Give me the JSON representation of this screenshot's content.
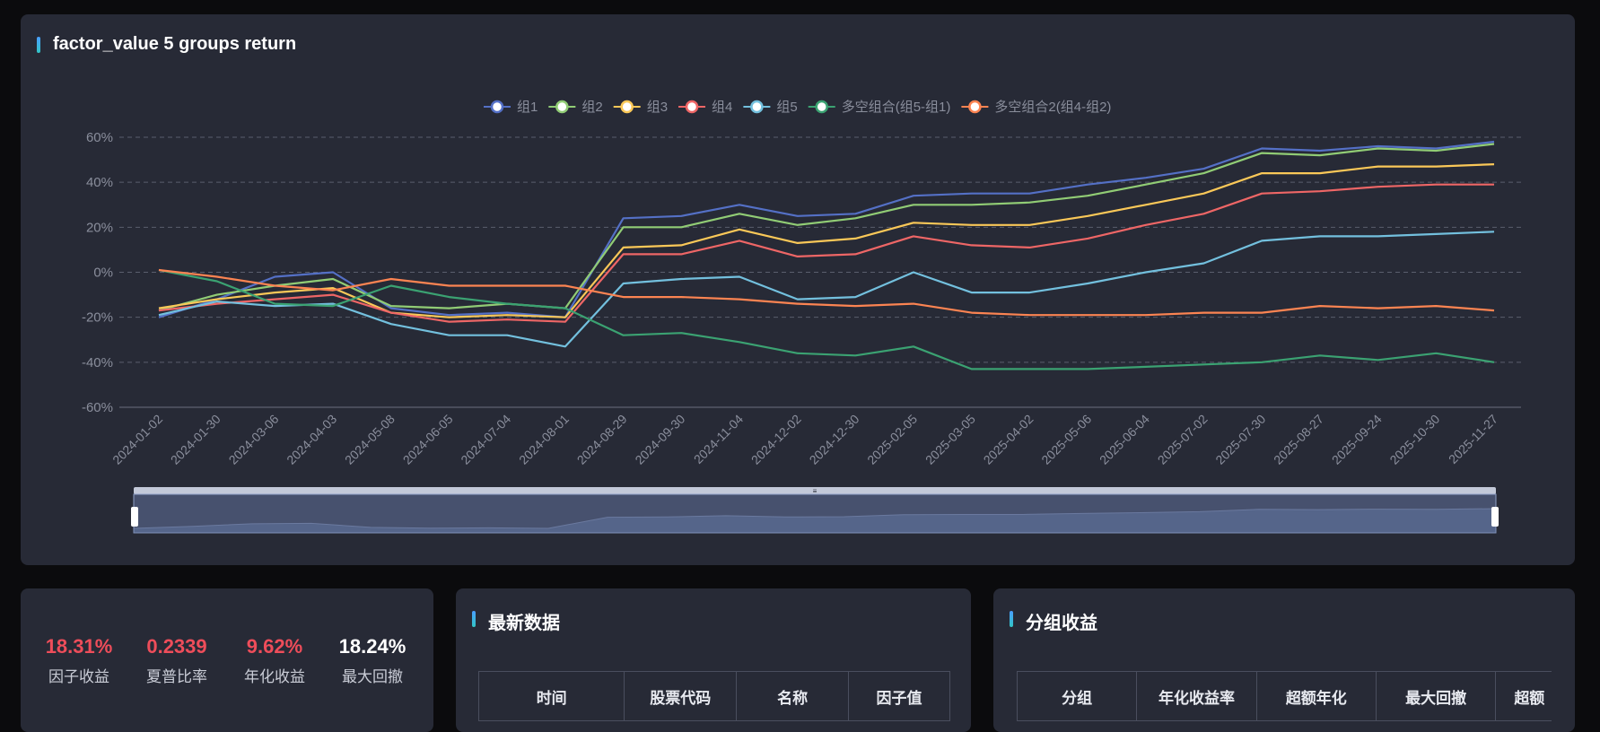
{
  "chart_panel": {
    "title": "factor_value 5 groups return"
  },
  "chart_data": {
    "type": "line",
    "title": "factor_value 5 groups return",
    "ylim": [
      -0.6,
      0.6
    ],
    "y_ticks": [
      "60%",
      "40%",
      "20%",
      "0%",
      "-20%",
      "-40%",
      "-60%"
    ],
    "grid": true,
    "legend_position": "top-center",
    "x": [
      "2024-01-02",
      "2024-01-30",
      "2024-03-06",
      "2024-04-03",
      "2024-05-08",
      "2024-06-05",
      "2024-07-04",
      "2024-08-01",
      "2024-08-29",
      "2024-09-30",
      "2024-11-04",
      "2024-12-02",
      "2024-12-30",
      "2025-02-05",
      "2025-03-05",
      "2025-04-02",
      "2025-05-06",
      "2025-06-04",
      "2025-07-02",
      "2025-07-30",
      "2025-08-27",
      "2025-09-24",
      "2025-10-30",
      "2025-11-27"
    ],
    "series": [
      {
        "name": "组1",
        "color": "#5470c6",
        "values": [
          -0.2,
          -0.12,
          -0.02,
          0.0,
          -0.16,
          -0.19,
          -0.18,
          -0.2,
          0.24,
          0.25,
          0.3,
          0.25,
          0.26,
          0.34,
          0.35,
          0.35,
          0.39,
          0.42,
          0.46,
          0.55,
          0.54,
          0.56,
          0.55,
          0.58
        ]
      },
      {
        "name": "组2",
        "color": "#91cc75",
        "values": [
          -0.17,
          -0.1,
          -0.06,
          -0.03,
          -0.15,
          -0.16,
          -0.14,
          -0.16,
          0.2,
          0.2,
          0.26,
          0.21,
          0.24,
          0.3,
          0.3,
          0.31,
          0.34,
          0.39,
          0.44,
          0.53,
          0.52,
          0.55,
          0.54,
          0.57
        ]
      },
      {
        "name": "组3",
        "color": "#fac858",
        "values": [
          -0.16,
          -0.12,
          -0.09,
          -0.07,
          -0.18,
          -0.2,
          -0.19,
          -0.2,
          0.11,
          0.12,
          0.19,
          0.13,
          0.15,
          0.22,
          0.21,
          0.21,
          0.25,
          0.3,
          0.35,
          0.44,
          0.44,
          0.47,
          0.47,
          0.48
        ]
      },
      {
        "name": "组4",
        "color": "#ee6666",
        "values": [
          -0.17,
          -0.14,
          -0.12,
          -0.1,
          -0.18,
          -0.22,
          -0.21,
          -0.22,
          0.08,
          0.08,
          0.14,
          0.07,
          0.08,
          0.16,
          0.12,
          0.11,
          0.15,
          0.21,
          0.26,
          0.35,
          0.36,
          0.38,
          0.39,
          0.39
        ]
      },
      {
        "name": "组5",
        "color": "#73c0de",
        "values": [
          -0.19,
          -0.13,
          -0.15,
          -0.14,
          -0.23,
          -0.28,
          -0.28,
          -0.33,
          -0.05,
          -0.03,
          -0.02,
          -0.12,
          -0.11,
          0.0,
          -0.09,
          -0.09,
          -0.05,
          0.0,
          0.04,
          0.14,
          0.16,
          0.16,
          0.17,
          0.18
        ]
      },
      {
        "name": "多空组合(组5-组1)",
        "color": "#3ba272",
        "values": [
          0.01,
          -0.04,
          -0.14,
          -0.15,
          -0.06,
          -0.11,
          -0.14,
          -0.16,
          -0.28,
          -0.27,
          -0.31,
          -0.36,
          -0.37,
          -0.33,
          -0.43,
          -0.43,
          -0.43,
          -0.42,
          -0.41,
          -0.4,
          -0.37,
          -0.39,
          -0.36,
          -0.4
        ]
      },
      {
        "name": "多空组合2(组4-组2)",
        "color": "#fc8452",
        "values": [
          0.01,
          -0.02,
          -0.06,
          -0.08,
          -0.03,
          -0.06,
          -0.06,
          -0.06,
          -0.11,
          -0.11,
          -0.12,
          -0.14,
          -0.15,
          -0.14,
          -0.18,
          -0.19,
          -0.19,
          -0.19,
          -0.18,
          -0.18,
          -0.15,
          -0.16,
          -0.15,
          -0.17
        ]
      }
    ]
  },
  "stats": [
    {
      "value": "18.31%",
      "label": "因子收益",
      "color": "#ee4d5a"
    },
    {
      "value": "0.2339",
      "label": "夏普比率",
      "color": "#ee4d5a"
    },
    {
      "value": "9.62%",
      "label": "年化收益",
      "color": "#ee4d5a"
    },
    {
      "value": "18.24%",
      "label": "最大回撤",
      "color": "#ffffff"
    }
  ],
  "latest_panel": {
    "title": "最新数据",
    "columns": [
      "时间",
      "股票代码",
      "名称",
      "因子值"
    ]
  },
  "group_panel": {
    "title": "分组收益",
    "columns": [
      "分组",
      "年化收益率",
      "超额年化",
      "最大回撤",
      "超额"
    ]
  }
}
